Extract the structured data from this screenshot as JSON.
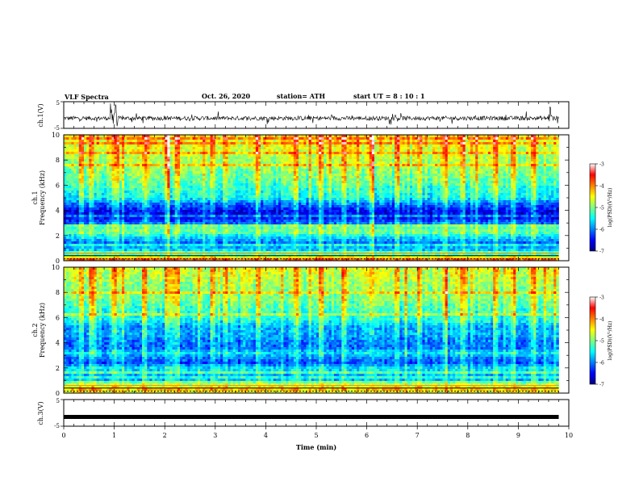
{
  "header": {
    "title": "VLF Spectra",
    "date": "Oct. 26, 2020",
    "station": "station= ATH",
    "start": "start  UT  =   8  : 10 : 1"
  },
  "panels": {
    "ch1_wave_label": "ch.1(V)",
    "ch1_spec_label_1": "ch.1",
    "ch1_spec_label_2": "Frequency (kHz)",
    "ch2_spec_label_1": "ch.2",
    "ch2_spec_label_2": "Frequency (kHz)",
    "ch3_wave_label": "ch.3(V)"
  },
  "colorbar": {
    "label": "log(PSD)(V²/Hz)",
    "ticks": [
      "-3",
      "-4",
      "-5",
      "-6",
      "-7"
    ]
  },
  "chart_data": [
    {
      "type": "line",
      "name": "ch.1 waveform",
      "ylabel": "ch.1(V)",
      "yticks": [
        "5",
        "-5"
      ],
      "ylim": [
        -5,
        5
      ],
      "xlim": [
        0,
        10
      ],
      "data_end_min": 9.8,
      "baseline_v": -1.2,
      "noise_amp_v": 0.8,
      "burst_times_min": [
        0.97,
        1.02,
        9.65
      ]
    },
    {
      "type": "heatmap",
      "name": "ch.1 spectrogram",
      "ylabel": "Frequency (kHz)",
      "yticks": [
        "0",
        "2",
        "4",
        "6",
        "8",
        "10"
      ],
      "ylim": [
        0,
        10
      ],
      "xlim": [
        0,
        10
      ],
      "data_end_min": 9.8,
      "color_range_log_psd": [
        -7,
        -3
      ],
      "profile_kHz_vs_logpsd": [
        [
          0.0,
          -4.3
        ],
        [
          0.3,
          -4.6
        ],
        [
          0.6,
          -5.6
        ],
        [
          1.0,
          -5.8
        ],
        [
          1.4,
          -6.1
        ],
        [
          1.8,
          -5.7
        ],
        [
          2.0,
          -5.5
        ],
        [
          2.3,
          -5.0
        ],
        [
          2.7,
          -5.3
        ],
        [
          3.0,
          -6.1
        ],
        [
          3.5,
          -6.6
        ],
        [
          4.0,
          -6.5
        ],
        [
          4.6,
          -6.0
        ],
        [
          5.0,
          -5.5
        ],
        [
          5.8,
          -5.3
        ],
        [
          6.5,
          -5.1
        ],
        [
          7.5,
          -4.9
        ],
        [
          8.5,
          -4.7
        ],
        [
          9.5,
          -4.5
        ],
        [
          10.0,
          -4.4
        ]
      ],
      "strong_bursts_min": [
        0.35,
        0.55,
        1.0,
        1.6,
        2.05,
        2.25,
        2.95,
        3.2,
        3.85,
        4.6,
        5.1,
        5.55,
        6.1,
        6.6,
        7.05,
        7.55,
        7.9,
        8.55,
        8.9,
        9.3
      ]
    },
    {
      "type": "heatmap",
      "name": "ch.2 spectrogram",
      "ylabel": "Frequency (kHz)",
      "yticks": [
        "0",
        "2",
        "4",
        "6",
        "8",
        "10"
      ],
      "ylim": [
        0,
        10
      ],
      "xlim": [
        0,
        10
      ],
      "data_end_min": 9.8,
      "color_range_log_psd": [
        -7,
        -3
      ],
      "profile_kHz_vs_logpsd": [
        [
          0.0,
          -4.5
        ],
        [
          0.4,
          -4.9
        ],
        [
          0.8,
          -5.5
        ],
        [
          1.2,
          -5.9
        ],
        [
          1.6,
          -5.7
        ],
        [
          2.0,
          -5.6
        ],
        [
          2.4,
          -6.2
        ],
        [
          2.8,
          -6.0
        ],
        [
          3.2,
          -5.6
        ],
        [
          3.6,
          -6.1
        ],
        [
          4.2,
          -6.0
        ],
        [
          4.8,
          -5.8
        ],
        [
          5.2,
          -5.9
        ],
        [
          5.8,
          -5.4
        ],
        [
          6.5,
          -5.3
        ],
        [
          7.5,
          -5.0
        ],
        [
          8.5,
          -4.9
        ],
        [
          9.5,
          -4.7
        ],
        [
          10.0,
          -4.6
        ]
      ],
      "strong_bursts_min": [
        0.35,
        0.55,
        1.0,
        1.6,
        2.05,
        2.25,
        2.95,
        3.2,
        3.85,
        4.6,
        5.1,
        5.55,
        6.1,
        6.6,
        7.05,
        7.55,
        7.9,
        8.55,
        8.9,
        9.3
      ]
    },
    {
      "type": "line",
      "name": "ch.3 waveform",
      "ylabel": "ch.3(V)",
      "yticks": [
        "5",
        "-5"
      ],
      "ylim": [
        -5,
        5
      ],
      "xlim": [
        0,
        10
      ],
      "xlabel": "Time  (min)",
      "xticks": [
        "0",
        "1",
        "2",
        "3",
        "4",
        "5",
        "6",
        "7",
        "8",
        "9",
        "10"
      ],
      "data_end_min": 9.8,
      "baseline_v": -1.5
    }
  ]
}
